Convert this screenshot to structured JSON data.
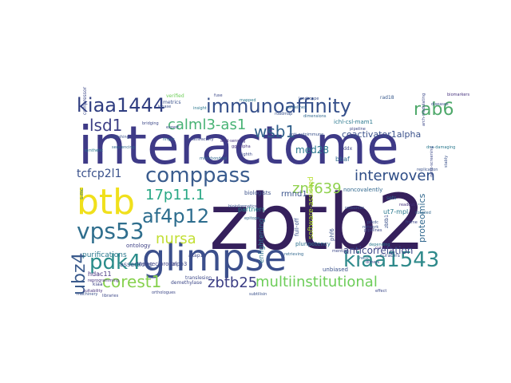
{
  "words": [
    {
      "text": "zbtb2",
      "color": "#35205c"
    },
    {
      "text": "interactome",
      "color": "#3e3a87"
    },
    {
      "text": "glimpse",
      "color": "#3b4f8c"
    },
    {
      "text": "btb",
      "color": "#f0e01c"
    },
    {
      "text": "immunoaffinity",
      "color": "#354f8a"
    },
    {
      "text": "kiaa1444",
      "color": "#2f3d80"
    },
    {
      "text": "comppass",
      "color": "#3a5c8e"
    },
    {
      "text": "interwoven",
      "color": "#2e4d86"
    },
    {
      "text": "rab6",
      "color": "#4fa96b"
    },
    {
      "text": "calml3-as1",
      "color": "#48b375"
    },
    {
      "text": "wsb1",
      "color": "#2f5f8a"
    },
    {
      "text": "lsd1",
      "color": "#3d3f85"
    },
    {
      "text": "vps53",
      "color": "#2f6e8d"
    },
    {
      "text": "af4p12",
      "color": "#2d6d8e"
    },
    {
      "text": "17p11.1",
      "color": "#29a885"
    },
    {
      "text": "znf639",
      "color": "#8fd14c"
    },
    {
      "text": "pdk4",
      "color": "#2a8c8a"
    },
    {
      "text": "nursa",
      "color": "#c2df33"
    },
    {
      "text": "ubz4",
      "color": "#3a5a8c"
    },
    {
      "text": "kiaa1543",
      "color": "#2f8a8b"
    },
    {
      "text": "corest1",
      "color": "#86d14d"
    },
    {
      "text": "zbtb25",
      "color": "#3b3d84"
    },
    {
      "text": "multiinstitutional",
      "color": "#6dcd59"
    },
    {
      "text": "tcfcp2l1",
      "color": "#39508b"
    },
    {
      "text": "coactivator1alpha",
      "color": "#3b528b"
    },
    {
      "text": "med28",
      "color": "#2a788e"
    },
    {
      "text": "proteomics",
      "color": "#31688e"
    },
    {
      "text": "anticorrelation",
      "color": "#3e4989"
    },
    {
      "text": "rmnd1",
      "color": "#3a548c"
    },
    {
      "text": "enlightening",
      "color": "#2c728e"
    },
    {
      "text": "partners",
      "color": "#24868e"
    },
    {
      "text": "purifications",
      "color": "#2a788e"
    },
    {
      "text": "assertions",
      "color": "#3b528b"
    },
    {
      "text": "ontology",
      "color": "#414487"
    },
    {
      "text": "tnpo3",
      "color": "#3e4989"
    },
    {
      "text": "hdac11",
      "color": "#46327e"
    },
    {
      "text": "noncovalently",
      "color": "#31688e"
    },
    {
      "text": "ut7-mpl",
      "color": "#2a788e"
    },
    {
      "text": "unbiased",
      "color": "#3b528b"
    },
    {
      "text": "nonreciprocal",
      "color": "#404387"
    },
    {
      "text": "software-assisted",
      "color": "#b5de2b"
    },
    {
      "text": "pluripotency",
      "color": "#2d708e"
    },
    {
      "text": "full-off",
      "color": "#3a548c"
    },
    {
      "text": "phf6",
      "color": "#3b528b"
    },
    {
      "text": "demethylase",
      "color": "#3e4989"
    },
    {
      "text": "compressor",
      "color": "#3e4989"
    },
    {
      "text": "verified",
      "color": "#6ece58"
    },
    {
      "text": "metrics",
      "color": "#3b528b"
    },
    {
      "text": "rad18",
      "color": "#38598c"
    },
    {
      "text": "ichl-csl-mam1",
      "color": "#2a788e"
    },
    {
      "text": "bbaf",
      "color": "#31688e"
    },
    {
      "text": "ddx",
      "color": "#3e4989"
    },
    {
      "text": "biologists",
      "color": "#3b528b"
    },
    {
      "text": "akap12",
      "color": "#3e4989"
    },
    {
      "text": "kiaa",
      "color": "#414487"
    },
    {
      "text": "translesion",
      "color": "#3e4989"
    },
    {
      "text": "reprogramming",
      "color": "#46327e"
    },
    {
      "text": "curators",
      "color": "#3b528b"
    },
    {
      "text": "mention",
      "color": "#3e4989"
    },
    {
      "text": "sets",
      "color": "#31688e"
    },
    {
      "text": "zbtb1",
      "color": "#3b528b"
    },
    {
      "text": "s-mc",
      "color": "#2a788e"
    },
    {
      "text": "guidelines",
      "color": "#31688e"
    },
    {
      "text": "pipeline",
      "color": "#3e4989"
    },
    {
      "text": "landscape",
      "color": "#3b528b"
    },
    {
      "text": "insight",
      "color": "#2a788e"
    },
    {
      "text": "expert",
      "color": "#3e4989"
    },
    {
      "text": "ggrlalpha",
      "color": "#46327e"
    },
    {
      "text": "epitope",
      "color": "#31688e"
    },
    {
      "text": "bioinformatics",
      "color": "#3b528b"
    },
    {
      "text": "arch-modulating",
      "color": "#3e4989"
    },
    {
      "text": "retrieving",
      "color": "#31688e"
    },
    {
      "text": "prkdc",
      "color": "#3b528b"
    },
    {
      "text": "pipelines",
      "color": "#3e4989"
    },
    {
      "text": "depending",
      "color": "#2a788e"
    },
    {
      "text": "curation",
      "color": "#46327e"
    },
    {
      "text": "network",
      "color": "#3b528b"
    },
    {
      "text": "helix",
      "color": "#31688e"
    },
    {
      "text": "dimers",
      "color": "#3e4989"
    },
    {
      "text": "resources",
      "color": "#3b528b"
    },
    {
      "text": "readout",
      "color": "#46327e"
    },
    {
      "text": "coupled",
      "color": "#31688e"
    },
    {
      "text": "frame",
      "color": "#3e4989"
    },
    {
      "text": "publishing",
      "color": "#3b528b"
    },
    {
      "text": "synthetic",
      "color": "#2a788e"
    },
    {
      "text": "bridging",
      "color": "#3e4989"
    },
    {
      "text": "kinase",
      "color": "#3b528b"
    },
    {
      "text": "finger",
      "color": "#31688e"
    },
    {
      "text": "unsatisfactory",
      "color": "#3e4989"
    },
    {
      "text": "acid-sensing",
      "color": "#46327e"
    },
    {
      "text": "anti-autoimmune",
      "color": "#3b528b"
    },
    {
      "text": "dna-damaging",
      "color": "#2a788e"
    },
    {
      "text": "gene-screening",
      "color": "#3e4989"
    },
    {
      "text": "replication",
      "color": "#3b528b"
    },
    {
      "text": "sequencing",
      "color": "#31688e"
    },
    {
      "text": "orthologues",
      "color": "#3e4989"
    },
    {
      "text": "subtilisin",
      "color": "#3b528b"
    },
    {
      "text": "suitability",
      "color": "#46327e"
    },
    {
      "text": "libraries",
      "color": "#3e4989"
    },
    {
      "text": "roadmap",
      "color": "#3b528b"
    },
    {
      "text": "dimensions",
      "color": "#31688e"
    },
    {
      "text": "fuse",
      "color": "#3e4989"
    },
    {
      "text": "mapped",
      "color": "#2a788e"
    },
    {
      "text": "stably",
      "color": "#3b528b"
    },
    {
      "text": "eighth",
      "color": "#3e4989"
    },
    {
      "text": "mitochondrial",
      "color": "#31688e"
    },
    {
      "text": "diseases",
      "color": "#3b528b"
    },
    {
      "text": "biomarkers",
      "color": "#46327e"
    },
    {
      "text": "effect",
      "color": "#3e4989"
    },
    {
      "text": "machinery",
      "color": "#3b528b"
    }
  ]
}
